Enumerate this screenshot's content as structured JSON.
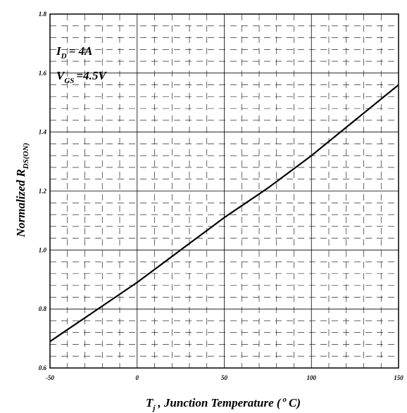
{
  "chart_data": {
    "type": "line",
    "title": "",
    "xlabel": {
      "main": "T",
      "sub": "j",
      "text_before_sup": ", Junction Temperature (",
      "sup": "o",
      "text_after_sup": "C)"
    },
    "ylabel": {
      "main": "Normalized R",
      "sub": "DS(ON)"
    },
    "xlim": [
      -50,
      150
    ],
    "ylim": [
      0.6,
      1.8
    ],
    "x_ticks": [
      "-50",
      "0",
      "50",
      "100",
      "150"
    ],
    "y_ticks": [
      "0.6",
      "0.8",
      "1.0",
      "1.2",
      "1.4",
      "1.6",
      "1.8"
    ],
    "x_tick_values": [
      -50,
      0,
      50,
      100,
      150
    ],
    "y_tick_values": [
      0.6,
      0.8,
      1.0,
      1.2,
      1.4,
      1.6,
      1.8
    ],
    "grid": true,
    "series": [
      {
        "x": [
          -50,
          -25,
          0,
          25,
          50,
          75,
          100,
          125,
          150
        ],
        "y": [
          0.69,
          0.79,
          0.89,
          1.0,
          1.11,
          1.21,
          1.32,
          1.44,
          1.56
        ]
      }
    ],
    "annotations": [
      {
        "main": "I",
        "sub": "D",
        "rest": "= 4A"
      },
      {
        "main": "V",
        "sub": "GS",
        "rest": "=4.5V"
      }
    ]
  }
}
